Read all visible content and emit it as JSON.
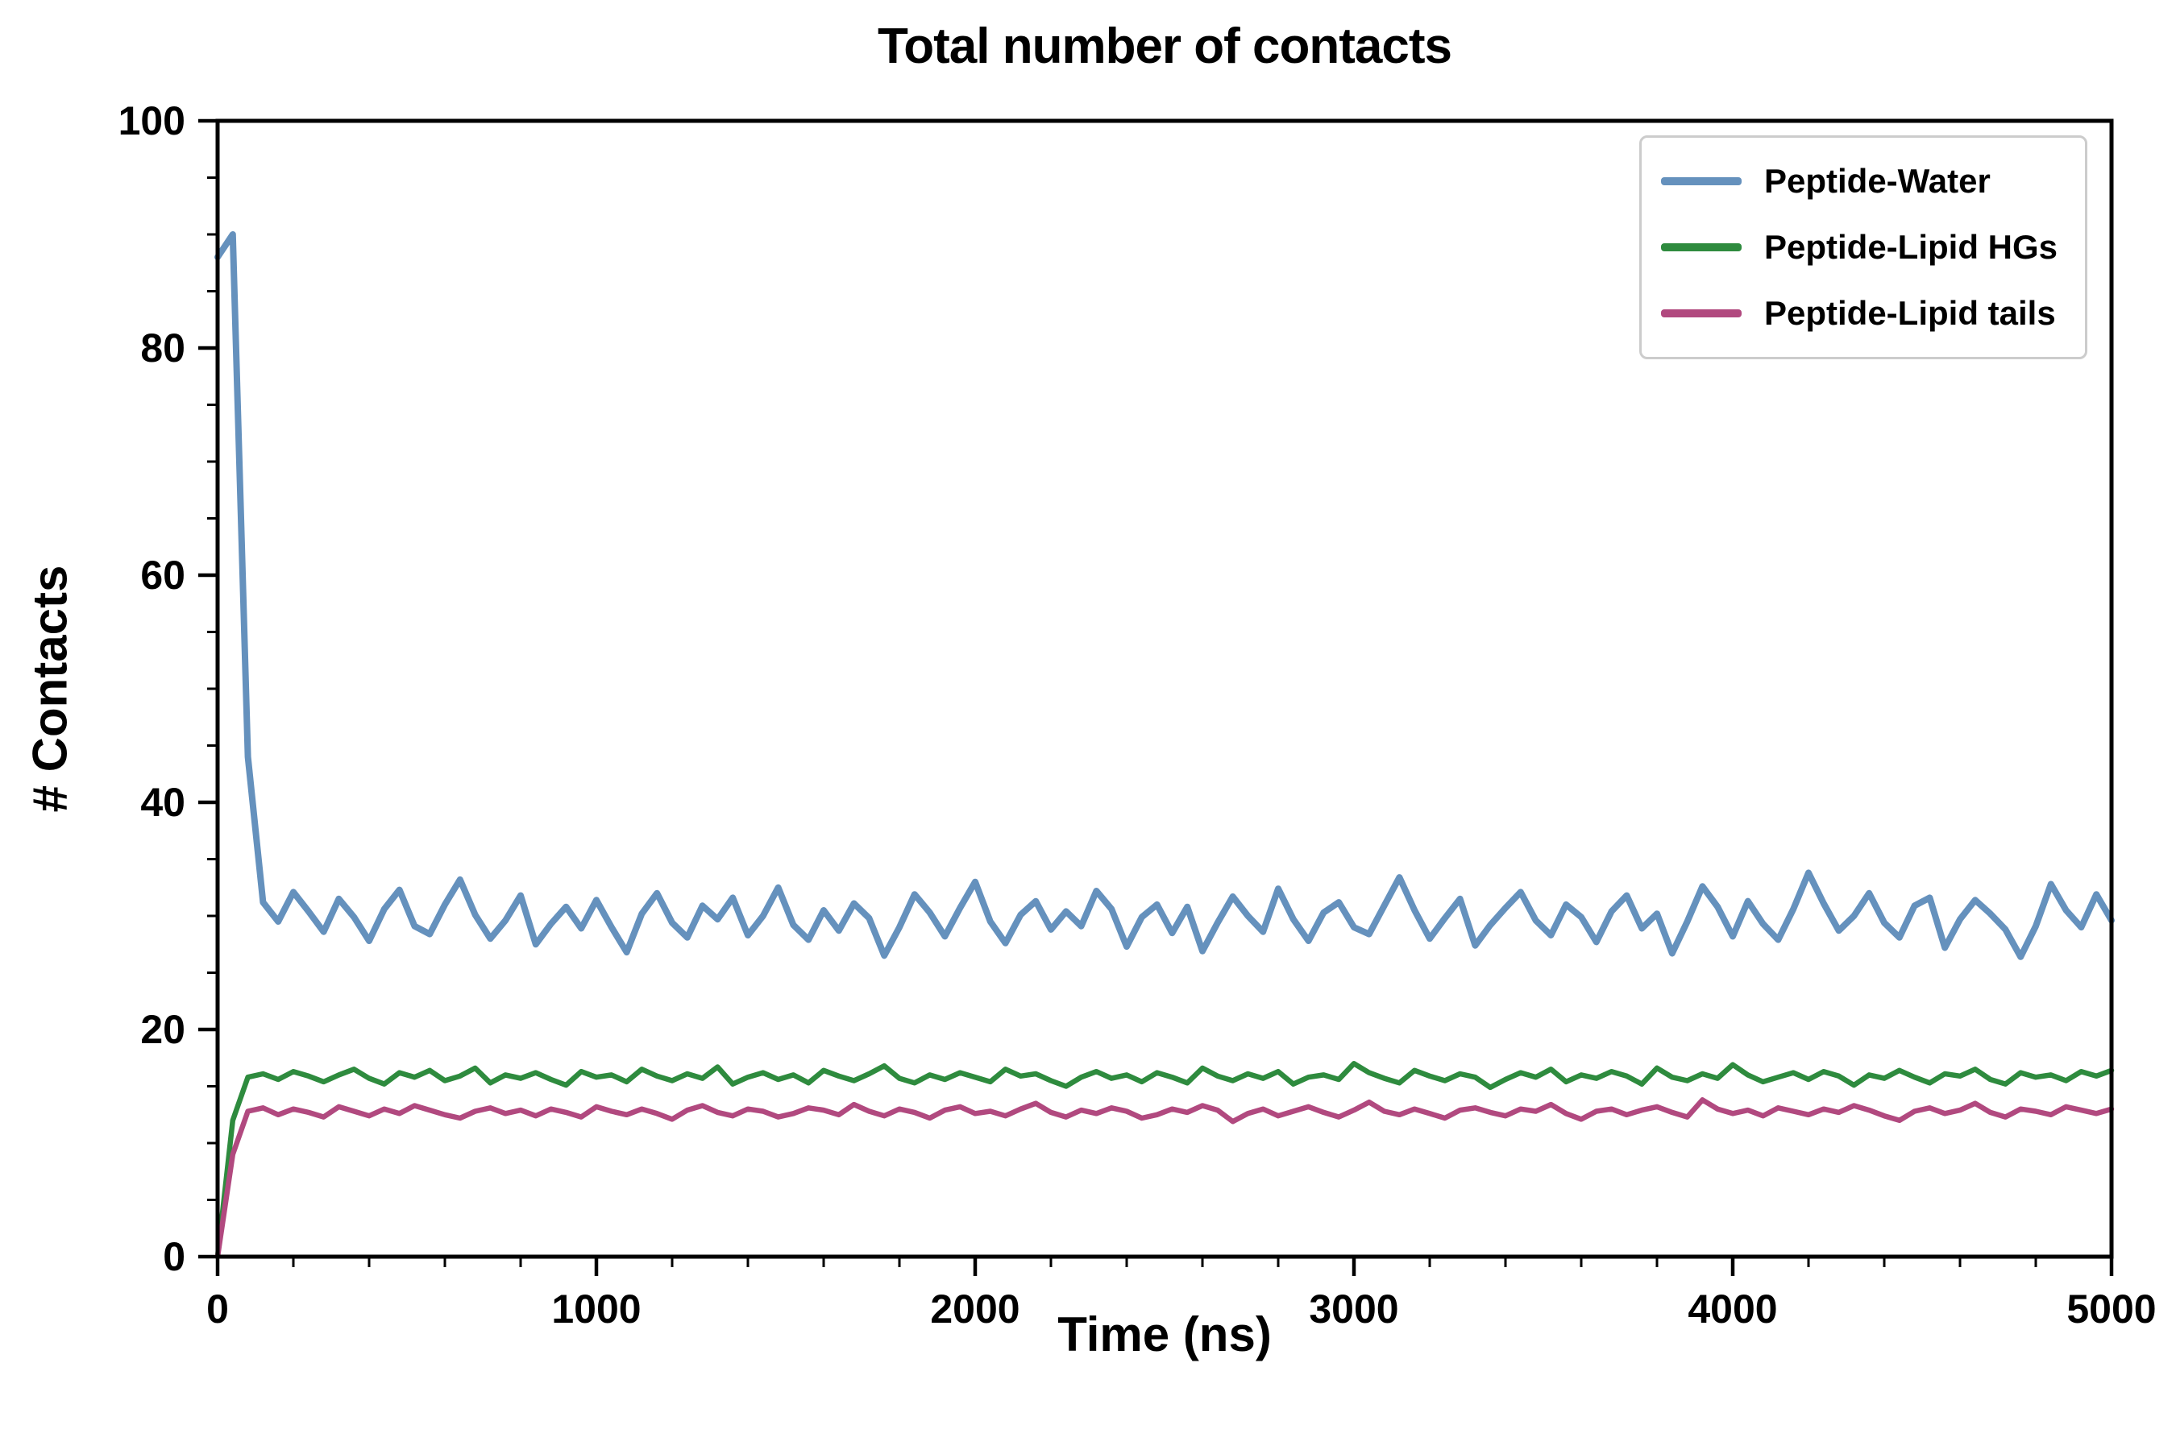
{
  "chart_data": {
    "type": "line",
    "title": "Total number of contacts",
    "xlabel": "Time (ns)",
    "ylabel": "# Contacts",
    "xlim": [
      0,
      5000
    ],
    "ylim": [
      0,
      100
    ],
    "x_ticks": [
      0,
      1000,
      2000,
      3000,
      4000,
      5000
    ],
    "y_ticks": [
      0,
      20,
      40,
      60,
      80,
      100
    ],
    "grid": false,
    "legend_position": "upper right",
    "series": [
      {
        "name": "Peptide-Water",
        "color": "#6591bd",
        "description": "starts near 90 at t=0, drops rapidly, then fluctuates around 30 contacts",
        "values": [
          88,
          90,
          44,
          31.2,
          29.5,
          32.1,
          30.4,
          28.6,
          31.5,
          29.9,
          27.8,
          30.6,
          32.3,
          29.1,
          28.4,
          31.0,
          33.2,
          30.1,
          28.0,
          29.6,
          31.8,
          27.5,
          29.3,
          30.8,
          28.9,
          31.4,
          29.0,
          26.8,
          30.2,
          32.0,
          29.4,
          28.1,
          30.9,
          29.7,
          31.6,
          28.3,
          30.0,
          32.5,
          29.2,
          27.9,
          30.5,
          28.7,
          31.1,
          29.8,
          26.5,
          29.0,
          31.9,
          30.3,
          28.2,
          30.7,
          33.0,
          29.5,
          27.6,
          30.1,
          31.3,
          28.8,
          30.4,
          29.1,
          32.2,
          30.6,
          27.3,
          29.9,
          31.0,
          28.5,
          30.8,
          26.9,
          29.4,
          31.7,
          30.0,
          28.6,
          32.4,
          29.7,
          27.8,
          30.3,
          31.2,
          29.0,
          28.4,
          30.9,
          33.4,
          30.5,
          28.0,
          29.8,
          31.5,
          27.4,
          29.2,
          30.7,
          32.1,
          29.6,
          28.3,
          31.0,
          29.9,
          27.7,
          30.4,
          31.8,
          28.9,
          30.2,
          26.7,
          29.5,
          32.6,
          30.8,
          28.2,
          31.3,
          29.3,
          27.9,
          30.6,
          33.8,
          31.1,
          28.7,
          30.0,
          32.0,
          29.4,
          28.1,
          30.9,
          31.6,
          27.2,
          29.7,
          31.4,
          30.2,
          28.8,
          26.4,
          29.1,
          32.8,
          30.5,
          29.0,
          31.9,
          29.6
        ]
      },
      {
        "name": "Peptide-Lipid HGs",
        "color": "#2e8b3e",
        "description": "rises from 0 at t=0 and plateaus around 16 contacts",
        "values": [
          0,
          12,
          15.8,
          16.1,
          15.6,
          16.3,
          15.9,
          15.4,
          16.0,
          16.5,
          15.7,
          15.2,
          16.2,
          15.8,
          16.4,
          15.5,
          15.9,
          16.6,
          15.3,
          16.0,
          15.7,
          16.2,
          15.6,
          15.1,
          16.3,
          15.8,
          16.0,
          15.4,
          16.5,
          15.9,
          15.5,
          16.1,
          15.7,
          16.7,
          15.2,
          15.8,
          16.2,
          15.6,
          16.0,
          15.3,
          16.4,
          15.9,
          15.5,
          16.1,
          16.8,
          15.7,
          15.3,
          16.0,
          15.6,
          16.2,
          15.8,
          15.4,
          16.5,
          15.9,
          16.1,
          15.5,
          15.0,
          15.8,
          16.3,
          15.7,
          16.0,
          15.4,
          16.2,
          15.8,
          15.3,
          16.6,
          15.9,
          15.5,
          16.1,
          15.7,
          16.3,
          15.2,
          15.8,
          16.0,
          15.6,
          17.0,
          16.2,
          15.7,
          15.3,
          16.4,
          15.9,
          15.5,
          16.1,
          15.8,
          14.9,
          15.6,
          16.2,
          15.8,
          16.5,
          15.4,
          16.0,
          15.7,
          16.3,
          15.9,
          15.2,
          16.6,
          15.8,
          15.5,
          16.1,
          15.7,
          16.9,
          16.0,
          15.4,
          15.8,
          16.2,
          15.6,
          16.3,
          15.9,
          15.1,
          16.0,
          15.7,
          16.4,
          15.8,
          15.3,
          16.1,
          15.9,
          16.5,
          15.6,
          15.2,
          16.2,
          15.8,
          16.0,
          15.5,
          16.3,
          15.9,
          16.4
        ]
      },
      {
        "name": "Peptide-Lipid tails",
        "color": "#b1497f",
        "description": "rises from 0 at t=0 and plateaus around 13 contacts",
        "values": [
          0,
          9,
          12.8,
          13.1,
          12.5,
          13.0,
          12.7,
          12.3,
          13.2,
          12.8,
          12.4,
          13.0,
          12.6,
          13.3,
          12.9,
          12.5,
          12.2,
          12.8,
          13.1,
          12.6,
          12.9,
          12.4,
          13.0,
          12.7,
          12.3,
          13.2,
          12.8,
          12.5,
          13.0,
          12.6,
          12.1,
          12.9,
          13.3,
          12.7,
          12.4,
          13.0,
          12.8,
          12.3,
          12.6,
          13.1,
          12.9,
          12.5,
          13.4,
          12.8,
          12.4,
          13.0,
          12.7,
          12.2,
          12.9,
          13.2,
          12.6,
          12.8,
          12.4,
          13.0,
          13.5,
          12.7,
          12.3,
          12.9,
          12.6,
          13.1,
          12.8,
          12.2,
          12.5,
          13.0,
          12.7,
          13.3,
          12.9,
          11.9,
          12.6,
          13.0,
          12.4,
          12.8,
          13.2,
          12.7,
          12.3,
          12.9,
          13.6,
          12.8,
          12.5,
          13.0,
          12.6,
          12.2,
          12.9,
          13.1,
          12.7,
          12.4,
          13.0,
          12.8,
          13.4,
          12.6,
          12.1,
          12.8,
          13.0,
          12.5,
          12.9,
          13.2,
          12.7,
          12.3,
          13.8,
          13.0,
          12.6,
          12.9,
          12.4,
          13.1,
          12.8,
          12.5,
          13.0,
          12.7,
          13.3,
          12.9,
          12.4,
          12.0,
          12.8,
          13.1,
          12.6,
          12.9,
          13.5,
          12.7,
          12.3,
          13.0,
          12.8,
          12.5,
          13.2,
          12.9,
          12.6,
          13.0
        ]
      }
    ]
  }
}
